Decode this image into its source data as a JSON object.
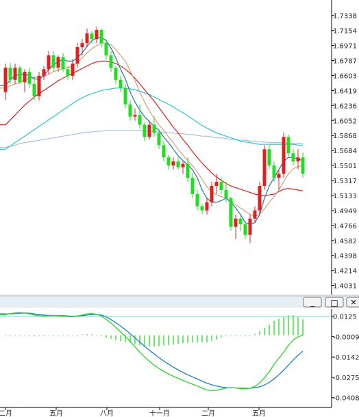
{
  "window_buttons": {
    "minimize": "_",
    "maximize": "□",
    "close": "✕"
  },
  "colors": {
    "up": "#e02020",
    "down": "#22dd22",
    "ma5": "#1f6fb2",
    "ma10": "#d4a07a",
    "ma20": "#d81e1e",
    "ma60": "#29c6cf",
    "ma120": "#a8bedc",
    "dif": "#22d822",
    "dea": "#1a7fc8",
    "macd_hist": "#22dd22",
    "grid": "#d8d8d8",
    "axis": "#000000"
  },
  "chart_data": [
    {
      "type": "candlestick",
      "title": "",
      "y_ticks": [
        "1.7338",
        "1.7154",
        "1.6971",
        "1.6787",
        "1.6603",
        "1.6419",
        "1.6236",
        "1.6052",
        "1.5868",
        "1.5684",
        "1.5501",
        "1.5317",
        "1.5133",
        "1.4949",
        "1.4766",
        "1.4582",
        "1.4398",
        "1.4214",
        "1.4031"
      ],
      "ylim": [
        1.3977,
        1.7428
      ],
      "x_labels": [
        "二月",
        "五月",
        "八月",
        "十一月",
        "二月",
        "五月"
      ],
      "candles": [
        [
          1.64,
          1.675,
          1.63,
          1.67
        ],
        [
          1.67,
          1.676,
          1.65,
          1.655
        ],
        [
          1.655,
          1.675,
          1.65,
          1.67
        ],
        [
          1.67,
          1.672,
          1.65,
          1.652
        ],
        [
          1.652,
          1.668,
          1.64,
          1.665
        ],
        [
          1.665,
          1.67,
          1.645,
          1.65
        ],
        [
          1.65,
          1.66,
          1.63,
          1.635
        ],
        [
          1.635,
          1.665,
          1.63,
          1.66
        ],
        [
          1.66,
          1.672,
          1.655,
          1.668
        ],
        [
          1.668,
          1.69,
          1.662,
          1.685
        ],
        [
          1.685,
          1.69,
          1.665,
          1.67
        ],
        [
          1.67,
          1.685,
          1.665,
          1.683
        ],
        [
          1.683,
          1.688,
          1.665,
          1.668
        ],
        [
          1.668,
          1.672,
          1.655,
          1.66
        ],
        [
          1.66,
          1.68,
          1.655,
          1.675
        ],
        [
          1.675,
          1.7,
          1.67,
          1.695
        ],
        [
          1.695,
          1.705,
          1.685,
          1.7
        ],
        [
          1.7,
          1.718,
          1.695,
          1.712
        ],
        [
          1.712,
          1.715,
          1.7,
          1.705
        ],
        [
          1.705,
          1.72,
          1.7,
          1.716
        ],
        [
          1.716,
          1.718,
          1.695,
          1.7
        ],
        [
          1.7,
          1.705,
          1.68,
          1.685
        ],
        [
          1.685,
          1.69,
          1.665,
          1.67
        ],
        [
          1.67,
          1.672,
          1.65,
          1.655
        ],
        [
          1.655,
          1.66,
          1.64,
          1.645
        ],
        [
          1.645,
          1.65,
          1.62,
          1.625
        ],
        [
          1.625,
          1.63,
          1.605,
          1.61
        ],
        [
          1.61,
          1.62,
          1.605,
          1.612
        ],
        [
          1.612,
          1.625,
          1.595,
          1.6
        ],
        [
          1.6,
          1.603,
          1.58,
          1.585
        ],
        [
          1.585,
          1.605,
          1.582,
          1.6
        ],
        [
          1.6,
          1.61,
          1.585,
          1.59
        ],
        [
          1.59,
          1.595,
          1.57,
          1.575
        ],
        [
          1.575,
          1.58,
          1.555,
          1.56
        ],
        [
          1.56,
          1.563,
          1.545,
          1.55
        ],
        [
          1.55,
          1.56,
          1.545,
          1.555
        ],
        [
          1.555,
          1.56,
          1.545,
          1.548
        ],
        [
          1.548,
          1.555,
          1.54,
          1.552
        ],
        [
          1.552,
          1.56,
          1.53,
          1.535
        ],
        [
          1.535,
          1.54,
          1.51,
          1.515
        ],
        [
          1.515,
          1.52,
          1.495,
          1.5
        ],
        [
          1.5,
          1.503,
          1.49,
          1.495
        ],
        [
          1.495,
          1.51,
          1.49,
          1.505
        ],
        [
          1.505,
          1.53,
          1.5,
          1.525
        ],
        [
          1.525,
          1.54,
          1.515,
          1.53
        ],
        [
          1.53,
          1.535,
          1.515,
          1.52
        ],
        [
          1.52,
          1.53,
          1.505,
          1.51
        ],
        [
          1.51,
          1.512,
          1.47,
          1.475
        ],
        [
          1.475,
          1.49,
          1.46,
          1.485
        ],
        [
          1.485,
          1.488,
          1.47,
          1.478
        ],
        [
          1.478,
          1.48,
          1.46,
          1.465
        ],
        [
          1.465,
          1.49,
          1.455,
          1.485
        ],
        [
          1.485,
          1.5,
          1.48,
          1.495
        ],
        [
          1.495,
          1.53,
          1.49,
          1.525
        ],
        [
          1.525,
          1.575,
          1.52,
          1.57
        ],
        [
          1.57,
          1.575,
          1.545,
          1.55
        ],
        [
          1.55,
          1.555,
          1.53,
          1.535
        ],
        [
          1.535,
          1.545,
          1.52,
          1.54
        ],
        [
          1.54,
          1.59,
          1.535,
          1.585
        ],
        [
          1.585,
          1.588,
          1.56,
          1.565
        ],
        [
          1.565,
          1.57,
          1.55,
          1.555
        ],
        [
          1.555,
          1.57,
          1.545,
          1.56
        ],
        [
          1.56,
          1.566,
          1.535,
          1.54
        ]
      ],
      "ma5": [
        1.648,
        1.655,
        1.66,
        1.662,
        1.662,
        1.66,
        1.656,
        1.656,
        1.66,
        1.668,
        1.674,
        1.677,
        1.68,
        1.678,
        1.678,
        1.682,
        1.688,
        1.696,
        1.703,
        1.706,
        1.707,
        1.703,
        1.694,
        1.682,
        1.668,
        1.656,
        1.64,
        1.628,
        1.618,
        1.61,
        1.604,
        1.598,
        1.593,
        1.585,
        1.578,
        1.57,
        1.562,
        1.556,
        1.551,
        1.545,
        1.535,
        1.52,
        1.51,
        1.505,
        1.505,
        1.507,
        1.51,
        1.505,
        1.498,
        1.49,
        1.48,
        1.478,
        1.48,
        1.49,
        1.51,
        1.525,
        1.535,
        1.545,
        1.555,
        1.56,
        1.56,
        1.558,
        1.556
      ],
      "ma10": [
        1.645,
        1.648,
        1.65,
        1.652,
        1.655,
        1.657,
        1.658,
        1.658,
        1.659,
        1.662,
        1.665,
        1.667,
        1.669,
        1.67,
        1.672,
        1.676,
        1.682,
        1.688,
        1.693,
        1.697,
        1.7,
        1.7,
        1.698,
        1.692,
        1.685,
        1.678,
        1.666,
        1.654,
        1.64,
        1.628,
        1.617,
        1.608,
        1.6,
        1.593,
        1.585,
        1.578,
        1.57,
        1.563,
        1.556,
        1.55,
        1.542,
        1.533,
        1.524,
        1.518,
        1.514,
        1.512,
        1.51,
        1.506,
        1.502,
        1.498,
        1.494,
        1.49,
        1.488,
        1.49,
        1.497,
        1.505,
        1.512,
        1.52,
        1.53,
        1.54,
        1.546,
        1.549,
        1.55
      ],
      "ma20": [
        1.6,
        1.606,
        1.612,
        1.618,
        1.624,
        1.629,
        1.634,
        1.638,
        1.642,
        1.646,
        1.65,
        1.654,
        1.657,
        1.66,
        1.663,
        1.666,
        1.669,
        1.672,
        1.675,
        1.677,
        1.678,
        1.678,
        1.677,
        1.675,
        1.672,
        1.668,
        1.663,
        1.657,
        1.65,
        1.643,
        1.636,
        1.629,
        1.621,
        1.613,
        1.605,
        1.597,
        1.59,
        1.582,
        1.575,
        1.567,
        1.56,
        1.553,
        1.547,
        1.541,
        1.536,
        1.532,
        1.528,
        1.525,
        1.523,
        1.521,
        1.519,
        1.517,
        1.515,
        1.514,
        1.513,
        1.514,
        1.515,
        1.518,
        1.521,
        1.522,
        1.521,
        1.52,
        1.519
      ],
      "ma60": [
        1.57,
        1.574,
        1.578,
        1.582,
        1.586,
        1.59,
        1.594,
        1.598,
        1.602,
        1.606,
        1.61,
        1.614,
        1.618,
        1.622,
        1.626,
        1.63,
        1.633,
        1.636,
        1.638,
        1.64,
        1.642,
        1.643,
        1.644,
        1.645,
        1.645,
        1.645,
        1.644,
        1.643,
        1.641,
        1.639,
        1.637,
        1.634,
        1.631,
        1.628,
        1.625,
        1.622,
        1.618,
        1.615,
        1.611,
        1.607,
        1.603,
        1.599,
        1.596,
        1.593,
        1.59,
        1.588,
        1.586,
        1.584,
        1.582,
        1.58,
        1.579,
        1.578,
        1.577,
        1.576,
        1.576,
        1.576,
        1.576,
        1.576,
        1.576,
        1.576,
        1.576,
        1.575,
        1.575
      ],
      "ma120": [
        1.572,
        1.574,
        1.575,
        1.577,
        1.578,
        1.579,
        1.58,
        1.581,
        1.582,
        1.583,
        1.584,
        1.585,
        1.586,
        1.587,
        1.588,
        1.589,
        1.59,
        1.591,
        1.591,
        1.592,
        1.592,
        1.593,
        1.593,
        1.593,
        1.593,
        1.593,
        1.593,
        1.593,
        1.593,
        1.592,
        1.592,
        1.592,
        1.591,
        1.591,
        1.59,
        1.59,
        1.589,
        1.589,
        1.588,
        1.588,
        1.587,
        1.586,
        1.586,
        1.585,
        1.584,
        1.584,
        1.583,
        1.582,
        1.582,
        1.581,
        1.581,
        1.58,
        1.58,
        1.579,
        1.579,
        1.578,
        1.578,
        1.578,
        1.578,
        1.577,
        1.577,
        1.577,
        1.577
      ]
    },
    {
      "type": "macd",
      "y_ticks": [
        "0.0125",
        "-0.0009",
        "-0.0142",
        "-0.0275",
        "-0.0408"
      ],
      "ylim": [
        -0.0445,
        0.0145
      ],
      "dif": [
        0.0135,
        0.0142,
        0.0146,
        0.0148,
        0.0146,
        0.014,
        0.0133,
        0.0128,
        0.0126,
        0.0127,
        0.0129,
        0.0127,
        0.0124,
        0.0122,
        0.0122,
        0.0126,
        0.0133,
        0.014,
        0.0142,
        0.0138,
        0.0126,
        0.0104,
        0.008,
        0.0052,
        0.0022,
        -0.0008,
        -0.004,
        -0.0075,
        -0.011,
        -0.0142,
        -0.017,
        -0.0195,
        -0.0217,
        -0.0236,
        -0.0253,
        -0.0268,
        -0.0282,
        -0.0295,
        -0.0308,
        -0.032,
        -0.0332,
        -0.0345,
        -0.0358,
        -0.0362,
        -0.036,
        -0.0352,
        -0.0345,
        -0.0342,
        -0.0345,
        -0.0348,
        -0.035,
        -0.0346,
        -0.0335,
        -0.0312,
        -0.0278,
        -0.0238,
        -0.019,
        -0.015,
        -0.011,
        -0.0065,
        -0.003,
        -0.001,
        0.0
      ],
      "dea": [
        0.014,
        0.014,
        0.0142,
        0.0144,
        0.0146,
        0.0144,
        0.014,
        0.0135,
        0.0132,
        0.013,
        0.013,
        0.0129,
        0.0128,
        0.0126,
        0.0125,
        0.0126,
        0.0128,
        0.0132,
        0.0136,
        0.0136,
        0.0132,
        0.012,
        0.0103,
        0.0083,
        0.006,
        0.0036,
        0.001,
        -0.0017,
        -0.0045,
        -0.0072,
        -0.0098,
        -0.0122,
        -0.0146,
        -0.0168,
        -0.0189,
        -0.0208,
        -0.0226,
        -0.0243,
        -0.0258,
        -0.0272,
        -0.0286,
        -0.03,
        -0.0313,
        -0.0324,
        -0.0332,
        -0.0338,
        -0.0342,
        -0.0343,
        -0.0344,
        -0.0345,
        -0.0346,
        -0.0346,
        -0.0343,
        -0.0337,
        -0.0325,
        -0.0308,
        -0.0285,
        -0.0258,
        -0.0228,
        -0.0195,
        -0.0162,
        -0.013,
        -0.0104
      ],
      "hist": [
        -0.0005,
        0.0002,
        0.0004,
        0.0004,
        0.0,
        -0.0004,
        -0.0007,
        -0.0007,
        -0.0006,
        -0.0003,
        -0.0001,
        -0.0002,
        -0.0004,
        -0.0004,
        -0.0003,
        0.0,
        0.0005,
        0.0008,
        0.0006,
        0.0002,
        -0.0006,
        -0.0016,
        -0.0023,
        -0.0031,
        -0.0038,
        -0.0044,
        -0.005,
        -0.0058,
        -0.0065,
        -0.007,
        -0.0072,
        -0.0073,
        -0.0071,
        -0.0068,
        -0.0064,
        -0.006,
        -0.0056,
        -0.0052,
        -0.005,
        -0.0048,
        -0.0046,
        -0.0045,
        -0.0045,
        -0.0038,
        -0.0028,
        -0.0014,
        -0.0003,
        0.0001,
        -0.0001,
        -0.0003,
        -0.0004,
        0.0,
        0.0008,
        0.0025,
        0.0047,
        0.007,
        0.0095,
        0.0108,
        0.0118,
        0.013,
        0.0132,
        0.012,
        0.0104
      ]
    }
  ]
}
